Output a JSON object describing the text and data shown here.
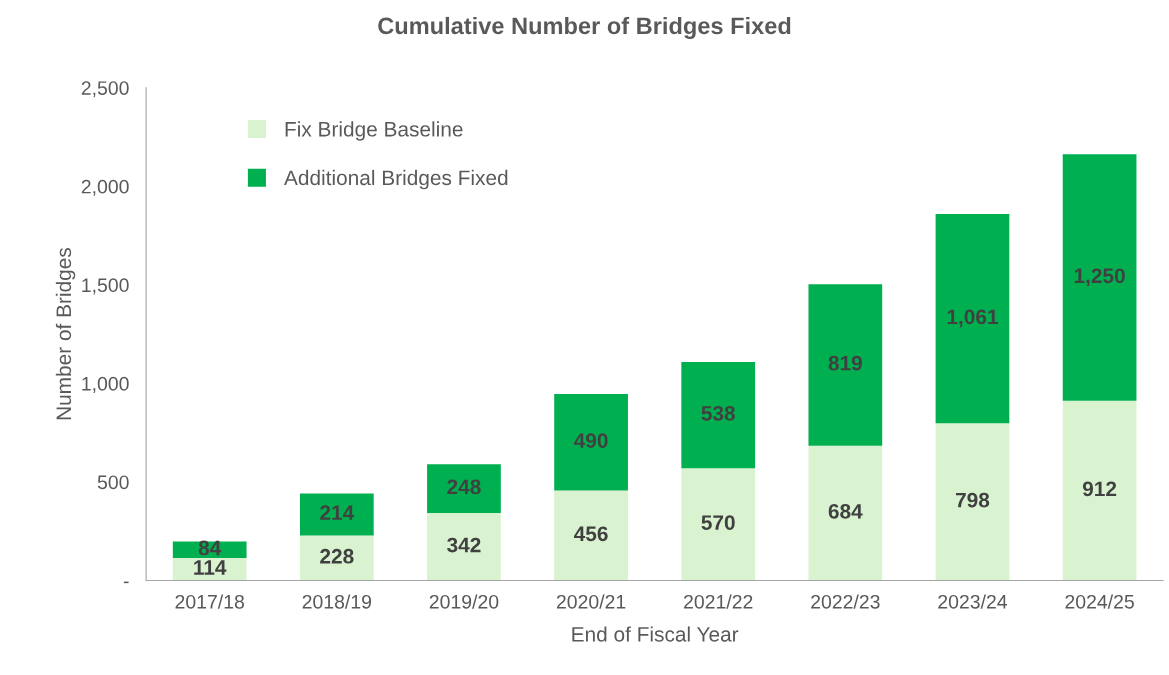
{
  "chart_data": {
    "type": "bar",
    "title": "Cumulative Number of Bridges Fixed",
    "xlabel": "End of Fiscal Year",
    "ylabel": "Number of Bridges",
    "categories": [
      "2017/18",
      "2018/19",
      "2019/20",
      "2020/21",
      "2021/22",
      "2022/23",
      "2023/24",
      "2024/25"
    ],
    "stacked": true,
    "series": [
      {
        "name": "Fix Bridge Baseline",
        "color": "#d9f2d0",
        "values": [
          114,
          228,
          342,
          456,
          570,
          684,
          798,
          912
        ],
        "value_labels": [
          "114",
          "228",
          "342",
          "456",
          "570",
          "684",
          "798",
          "912"
        ]
      },
      {
        "name": "Additional Bridges Fixed",
        "color": "#00b050",
        "values": [
          84,
          214,
          248,
          490,
          538,
          819,
          1061,
          1250
        ],
        "value_labels": [
          "84",
          "214",
          "248",
          "490",
          "538",
          "819",
          "1,061",
          "1,250"
        ]
      }
    ],
    "ylim": [
      0,
      2500
    ],
    "yticks": [
      {
        "value": 0,
        "label": "-"
      },
      {
        "value": 500,
        "label": "500"
      },
      {
        "value": 1000,
        "label": "1,000"
      },
      {
        "value": 1500,
        "label": "1,500"
      },
      {
        "value": 2000,
        "label": "2,000"
      },
      {
        "value": 2500,
        "label": "2,500"
      }
    ],
    "grid": false,
    "legend": "top left"
  }
}
